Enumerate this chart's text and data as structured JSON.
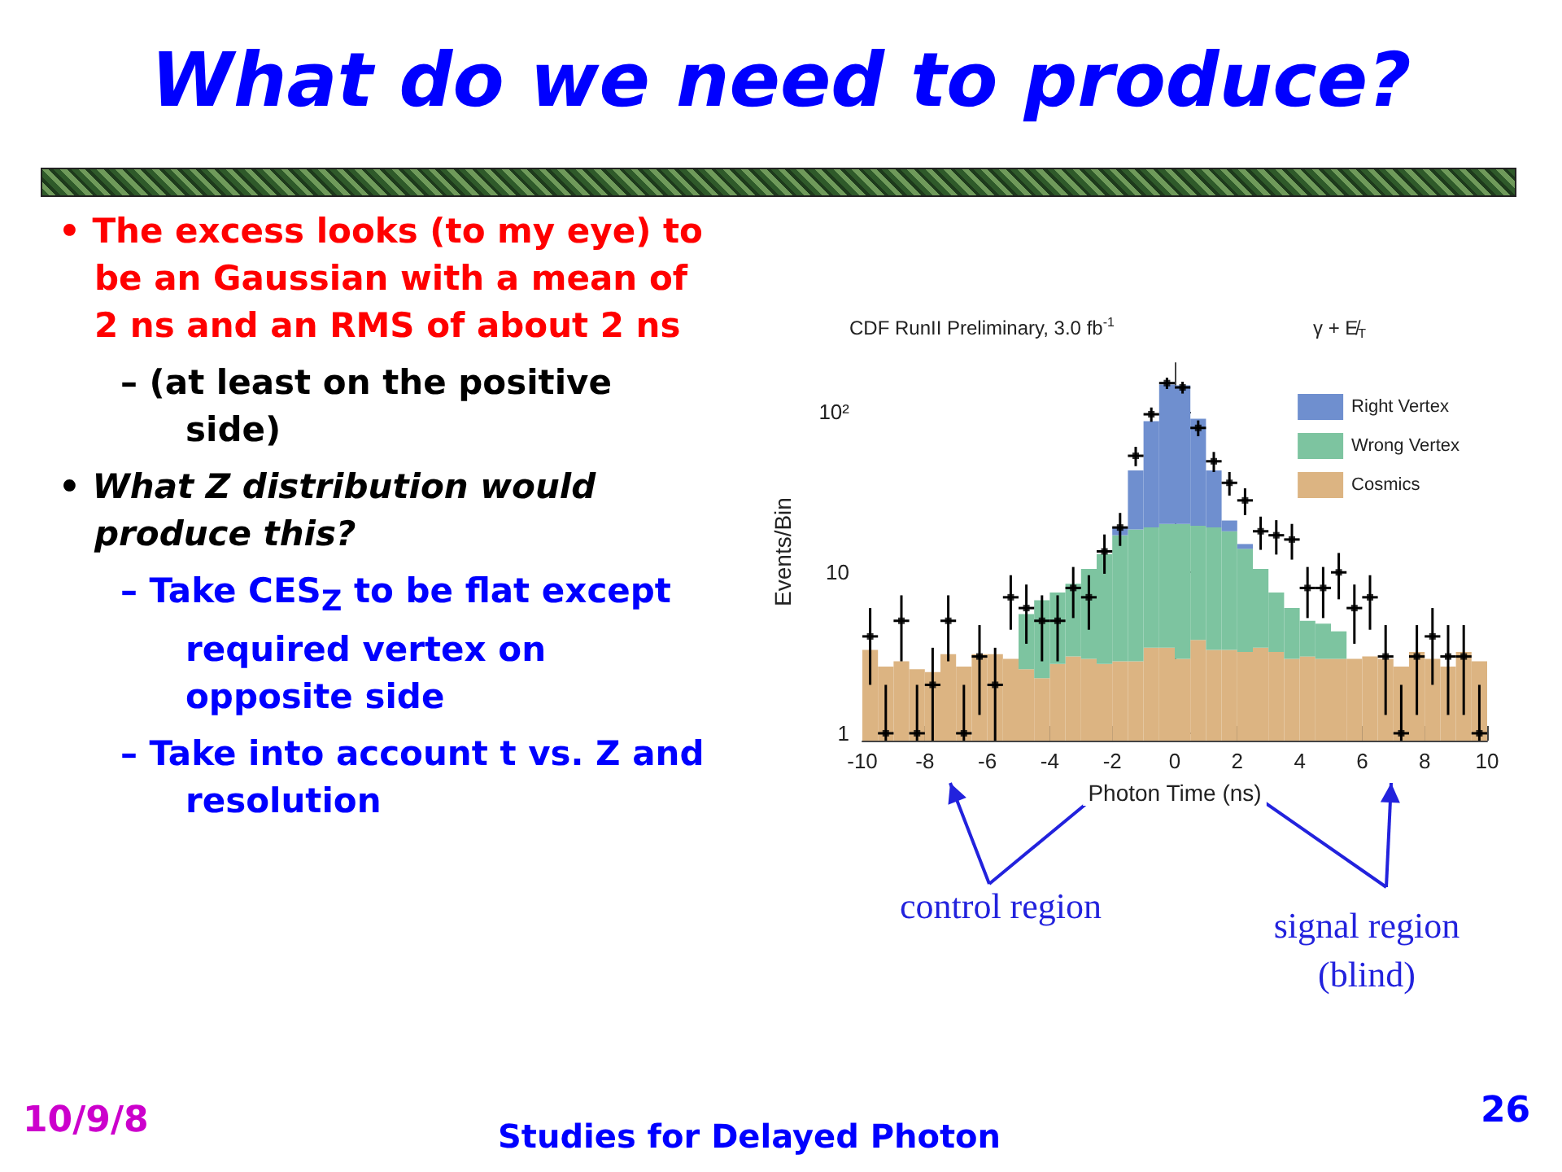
{
  "chart_data": {
    "type": "bar",
    "title": "What do we need to produce?",
    "subtitle": "CDF RunII Preliminary, 3.0 fb$^{-1}$",
    "xlabel": "Photon Time (ns)",
    "ylabel": "Events/Bin",
    "stacked": true,
    "log": "y",
    "legend": "top right",
    "marker": "square",
    "xlim": [
      -10,
      10
    ],
    "xticks": [
      -10,
      -8,
      -6,
      -4,
      -2,
      0,
      2,
      4,
      6,
      8,
      10
    ],
    "ylim": [
      0.9,
      200
    ],
    "yticks": [
      {
        "value": 1,
        "label": "1"
      },
      {
        "value": 10,
        "label": "10"
      },
      {
        "value": 100,
        "label": "10²"
      }
    ],
    "x": [
      -9.75,
      -9.25,
      -8.75,
      -8.25,
      -7.75,
      -7.25,
      -6.75,
      -6.25,
      -5.75,
      -5.25,
      -4.75,
      -4.25,
      -3.75,
      -3.25,
      -2.75,
      -2.25,
      -1.75,
      -1.25,
      -0.75,
      -0.25,
      0.25,
      0.75,
      1.25,
      1.75,
      2.25,
      2.75,
      3.25,
      3.75,
      4.25,
      4.75,
      5.25,
      5.75,
      6.25,
      6.75,
      7.25,
      7.75,
      8.25,
      8.75,
      9.25,
      9.75
    ],
    "series": [
      {
        "name": "Cosmics",
        "color": "#dcb482",
        "values": [
          3.3,
          2.6,
          2.8,
          2.5,
          2.4,
          3.1,
          2.6,
          3.1,
          3.1,
          2.9,
          2.5,
          2.2,
          2.7,
          3.0,
          2.9,
          2.7,
          2.8,
          2.8,
          3.4,
          3.4,
          2.9,
          3.8,
          3.3,
          3.3,
          3.2,
          3.4,
          3.2,
          2.9,
          3.0,
          2.9,
          2.9,
          2.9,
          3.0,
          2.9,
          2.6,
          3.2,
          2.9,
          2.6,
          3.2,
          2.8
        ]
      },
      {
        "name": "Wrong Vertex",
        "color": "#7dc4a0",
        "values": [
          null,
          null,
          null,
          null,
          null,
          null,
          null,
          null,
          null,
          null,
          3.0,
          4.5,
          4.8,
          5.5,
          7.6,
          10.3,
          14.2,
          15.7,
          15.6,
          16.6,
          17.1,
          15.7,
          15.7,
          14.7,
          10.8,
          7.1,
          4.3,
          3.1,
          2.0,
          1.9,
          1.4,
          null,
          null,
          null,
          null,
          null,
          null,
          null,
          null,
          null
        ]
      },
      {
        "name": "Right Vertex",
        "color": "#6f8fcf",
        "values": [
          null,
          null,
          null,
          null,
          null,
          null,
          null,
          null,
          null,
          null,
          null,
          null,
          null,
          null,
          null,
          null,
          2,
          24.5,
          68,
          127,
          125,
          70.5,
          24,
          3,
          1,
          null,
          null,
          null,
          null,
          null,
          null,
          null,
          null,
          null,
          null,
          null,
          null,
          null,
          null,
          null
        ]
      },
      {
        "type": "scatter",
        "color": "#000000",
        "x": [
          -9.75,
          -9.25,
          -8.75,
          -8.25,
          -7.75,
          -7.25,
          -6.75,
          -6.25,
          -5.75,
          -5.25,
          -4.75,
          -4.25,
          -3.75,
          -3.25,
          -2.75,
          -2.25,
          -1.75,
          -1.25,
          -0.75,
          -0.25,
          0.25,
          0.75,
          1.25,
          1.75,
          2.25,
          2.75,
          3.25,
          3.75,
          4.25,
          4.75,
          5.25,
          5.75,
          6.25,
          6.75,
          7.25,
          7.75,
          8.25,
          8.75,
          9.25,
          9.75
        ],
        "values": [
          4,
          1,
          5,
          1,
          2,
          5,
          1,
          3,
          2,
          7,
          6,
          5,
          5,
          8,
          7,
          13.5,
          19,
          53,
          96,
          150,
          141,
          79,
          49,
          36,
          28,
          18,
          17,
          16,
          8,
          8,
          10,
          6,
          7,
          3,
          1,
          3,
          4,
          3,
          3,
          1
        ],
        "errors": [
          [
            2,
            6
          ],
          [
            0.9,
            2
          ],
          [
            2.8,
            7.2
          ],
          [
            0.9,
            2
          ],
          [
            0.9,
            3.4
          ],
          [
            2.8,
            7.2
          ],
          [
            0.9,
            2
          ],
          [
            1.3,
            4.7
          ],
          [
            0.9,
            3.4
          ],
          [
            4.4,
            9.6
          ],
          [
            3.6,
            8.4
          ],
          [
            2.8,
            7.2
          ],
          [
            2.8,
            7.2
          ],
          [
            5.2,
            10.8
          ],
          [
            4.4,
            9.6
          ],
          [
            9.8,
            17.2
          ],
          [
            14.6,
            23.4
          ],
          [
            45.7,
            60.3
          ],
          [
            86.2,
            105.8
          ],
          [
            137.8,
            162.2
          ],
          [
            129.1,
            152.9
          ],
          [
            70.1,
            87.9
          ],
          [
            42,
            56
          ],
          [
            30,
            42
          ],
          [
            22.7,
            33.3
          ],
          [
            13.8,
            22.2
          ],
          [
            12.9,
            21.1
          ],
          [
            12,
            20
          ],
          [
            5.2,
            10.8
          ],
          [
            5.2,
            10.8
          ],
          [
            6.8,
            13.2
          ],
          [
            3.6,
            8.4
          ],
          [
            4.4,
            9.6
          ],
          [
            1.3,
            4.7
          ],
          [
            0.9,
            2
          ],
          [
            1.3,
            4.7
          ],
          [
            2,
            6
          ],
          [
            1.3,
            4.7
          ],
          [
            1.3,
            4.7
          ],
          [
            0.9,
            2
          ]
        ],
        "xerrors": [
          0.25,
          0.25,
          0.25,
          0.25,
          0.25,
          0.25,
          0.25,
          0.25,
          0.25,
          0.25,
          0.25,
          0.25,
          0.25,
          0.25,
          0.25,
          0.25,
          0.25,
          0.25,
          0.25,
          0.25,
          0.25,
          0.25,
          0.25,
          0.25,
          0.25,
          0.25,
          0.25,
          0.25,
          0.25,
          0.25,
          0.25,
          0.25,
          0.25,
          0.25,
          0.25,
          0.25,
          0.25,
          0.25,
          0.25,
          0.25
        ]
      }
    ],
    "annotations": [
      "• The excess looks (to my eye) to be an Gaussian with a mean of 2 ns and an RMS of about 2 ns",
      "– (at least on the positive side)",
      "• What Z distribution would produce this?",
      "– Take CES$_{Z}$ to be flat except required vertex on opposite side",
      "– Take into account t vs. Z and resolution",
      "control region",
      "signal region (blind)",
      "10/9/8",
      "Studies for Delayed Photon",
      "26",
      "γ + E̸$_{T}$"
    ]
  }
}
